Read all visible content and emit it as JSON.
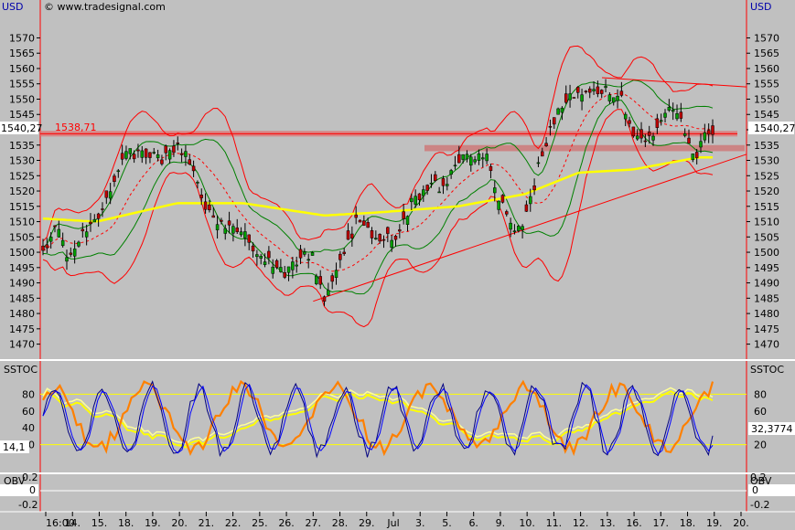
{
  "header": {
    "currency_left": "USD",
    "currency_right": "USD",
    "watermark": "© www.tradesignal.com"
  },
  "chart_data": [
    {
      "type": "candlestick",
      "panel": "price",
      "ylim": [
        1466,
        1577
      ],
      "y_ticks": [
        1470,
        1475,
        1480,
        1485,
        1490,
        1495,
        1500,
        1505,
        1510,
        1515,
        1520,
        1525,
        1530,
        1535,
        1540,
        1545,
        1550,
        1555,
        1560,
        1565,
        1570
      ],
      "x_tick_labels": [
        "16:00",
        "14.",
        "15.",
        "18.",
        "19.",
        "20.",
        "21.",
        "22.",
        "25.",
        "26.",
        "27.",
        "28.",
        "29.",
        "Jul",
        "3.",
        "5.",
        "6.",
        "9.",
        "10.",
        "11.",
        "12.",
        "13.",
        "16.",
        "17.",
        "18.",
        "19.",
        "20."
      ],
      "current_price_label": "1540,27",
      "horizontal_line_label": "1538,71",
      "horizontal_line_value": 1538.71,
      "support_zone": [
        1533,
        1535
      ],
      "trendline": {
        "from": [
          "27.",
          1484
        ],
        "to": [
          "20.",
          1530
        ]
      },
      "sma_yellow_knots": [
        [
          0,
          1511
        ],
        [
          0.08,
          1510
        ],
        [
          0.2,
          1516
        ],
        [
          0.3,
          1516
        ],
        [
          0.42,
          1512
        ],
        [
          0.5,
          1513
        ],
        [
          0.62,
          1515
        ],
        [
          0.72,
          1519
        ],
        [
          0.8,
          1526
        ],
        [
          0.88,
          1527
        ],
        [
          0.98,
          1531
        ]
      ],
      "close_knots": [
        [
          0,
          1500
        ],
        [
          0.02,
          1508
        ],
        [
          0.04,
          1497
        ],
        [
          0.06,
          1506
        ],
        [
          0.09,
          1513
        ],
        [
          0.12,
          1533
        ],
        [
          0.15,
          1532
        ],
        [
          0.18,
          1530
        ],
        [
          0.2,
          1535
        ],
        [
          0.22,
          1530
        ],
        [
          0.24,
          1515
        ],
        [
          0.26,
          1510
        ],
        [
          0.3,
          1506
        ],
        [
          0.33,
          1498
        ],
        [
          0.36,
          1493
        ],
        [
          0.4,
          1500
        ],
        [
          0.42,
          1485
        ],
        [
          0.45,
          1499
        ],
        [
          0.47,
          1512
        ],
        [
          0.5,
          1503
        ],
        [
          0.53,
          1506
        ],
        [
          0.55,
          1516
        ],
        [
          0.58,
          1523
        ],
        [
          0.6,
          1520
        ],
        [
          0.62,
          1530
        ],
        [
          0.66,
          1533
        ],
        [
          0.68,
          1518
        ],
        [
          0.7,
          1510
        ],
        [
          0.71,
          1507
        ],
        [
          0.73,
          1518
        ],
        [
          0.74,
          1528
        ],
        [
          0.77,
          1548
        ],
        [
          0.8,
          1553
        ],
        [
          0.83,
          1553
        ],
        [
          0.86,
          1552
        ],
        [
          0.88,
          1538
        ],
        [
          0.9,
          1535
        ],
        [
          0.92,
          1540
        ],
        [
          0.94,
          1548
        ],
        [
          0.96,
          1540
        ],
        [
          0.975,
          1530
        ],
        [
          0.99,
          1540
        ]
      ]
    },
    {
      "type": "line",
      "panel": "SSTOC",
      "title": "SSTOC",
      "ylim": [
        0,
        100
      ],
      "y_ticks": [
        20,
        40,
        60,
        80
      ],
      "levels": [
        20,
        80
      ],
      "current_value_left": "14,1",
      "current_value_right": "32,3774",
      "series_colors": [
        "#000080",
        "#0000ff",
        "#ff8000",
        "#ffff00",
        "#ffff66"
      ]
    },
    {
      "type": "line",
      "panel": "OBV",
      "title": "OBV",
      "y_ticks": [
        "0.2",
        "0",
        "-0.2"
      ]
    }
  ]
}
